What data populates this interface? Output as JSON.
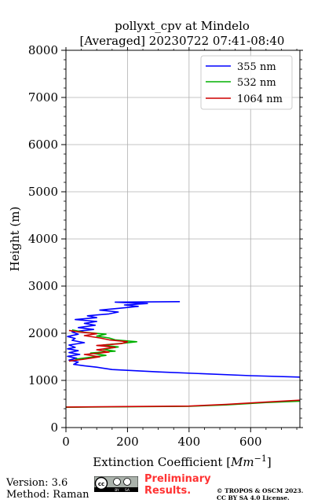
{
  "chart_data": {
    "type": "line",
    "title_line1": "pollyxt_cpv at Mindelo",
    "title_line2": "[Averaged] 20230722 07:41-08:40",
    "xlabel_main": "Extinction Coefficient [",
    "xlabel_unit": "Mm",
    "xlabel_exp": "−1",
    "xlabel_end": "]",
    "ylabel": "Height (m)",
    "xlim": [
      0,
      760
    ],
    "ylim": [
      0,
      8000
    ],
    "xticks": [
      0,
      200,
      400,
      600
    ],
    "yticks": [
      0,
      1000,
      2000,
      3000,
      4000,
      5000,
      6000,
      7000,
      8000
    ],
    "grid": true,
    "legend_position": "top-right",
    "series": [
      {
        "name": "355 nm",
        "color": "#0000ff",
        "points": [
          [
            760,
            1070
          ],
          [
            600,
            1100
          ],
          [
            300,
            1180
          ],
          [
            150,
            1230
          ],
          [
            100,
            1280
          ],
          [
            60,
            1310
          ],
          [
            25,
            1340
          ],
          [
            40,
            1390
          ],
          [
            10,
            1430
          ],
          [
            35,
            1470
          ],
          [
            5,
            1510
          ],
          [
            45,
            1550
          ],
          [
            10,
            1590
          ],
          [
            40,
            1630
          ],
          [
            5,
            1670
          ],
          [
            30,
            1700
          ],
          [
            10,
            1750
          ],
          [
            60,
            1800
          ],
          [
            20,
            1850
          ],
          [
            30,
            1890
          ],
          [
            5,
            1930
          ],
          [
            40,
            1980
          ],
          [
            20,
            2030
          ],
          [
            90,
            2080
          ],
          [
            40,
            2120
          ],
          [
            95,
            2170
          ],
          [
            60,
            2210
          ],
          [
            100,
            2250
          ],
          [
            30,
            2290
          ],
          [
            100,
            2330
          ],
          [
            70,
            2370
          ],
          [
            140,
            2410
          ],
          [
            170,
            2450
          ],
          [
            110,
            2490
          ],
          [
            175,
            2530
          ],
          [
            235,
            2570
          ],
          [
            190,
            2600
          ],
          [
            265,
            2630
          ],
          [
            160,
            2660
          ],
          [
            370,
            2670
          ]
        ]
      },
      {
        "name": "532 nm",
        "color": "#00b000",
        "points": [
          [
            760,
            560
          ],
          [
            650,
            530
          ],
          [
            520,
            480
          ],
          [
            400,
            450
          ],
          [
            0,
            430
          ],
          null,
          [
            30,
            1450
          ],
          [
            80,
            1490
          ],
          [
            130,
            1530
          ],
          [
            80,
            1580
          ],
          [
            160,
            1620
          ],
          [
            120,
            1660
          ],
          [
            170,
            1710
          ],
          [
            120,
            1750
          ],
          [
            190,
            1790
          ],
          [
            230,
            1820
          ],
          [
            160,
            1860
          ],
          [
            140,
            1900
          ],
          [
            100,
            1940
          ],
          [
            130,
            1980
          ],
          [
            60,
            2020
          ],
          [
            20,
            2070
          ]
        ]
      },
      {
        "name": "1064 nm",
        "color": "#d00000",
        "points": [
          [
            760,
            580
          ],
          [
            650,
            540
          ],
          [
            520,
            490
          ],
          [
            400,
            455
          ],
          [
            0,
            435
          ],
          null,
          [
            10,
            1410
          ],
          [
            60,
            1450
          ],
          [
            110,
            1500
          ],
          [
            60,
            1550
          ],
          [
            140,
            1600
          ],
          [
            100,
            1650
          ],
          [
            160,
            1700
          ],
          [
            100,
            1740
          ],
          [
            180,
            1780
          ],
          [
            200,
            1820
          ],
          [
            140,
            1860
          ],
          [
            110,
            1900
          ],
          [
            60,
            1950
          ],
          [
            100,
            1990
          ],
          [
            40,
            2030
          ],
          [
            10,
            2060
          ]
        ]
      }
    ]
  },
  "footer": {
    "version": "Version: 3.6",
    "method": "Method: Raman",
    "preliminary_line1": "Preliminary",
    "preliminary_line2": "Results.",
    "preliminary_color": "#ff3333",
    "copyright_line1": "© TROPOS & OSCM 2023.",
    "copyright_line2": "CC BY SA 4.0 License.",
    "license_badge": {
      "cc": "cc",
      "by": "BY",
      "sa": "SA"
    }
  }
}
